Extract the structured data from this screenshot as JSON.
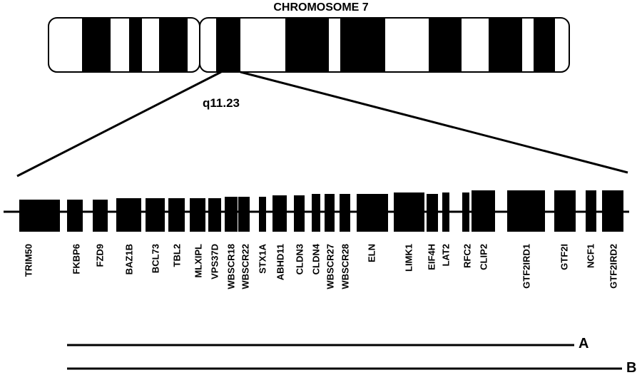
{
  "title": "CHROMOSOME 7",
  "band": "q11.23",
  "genes": [
    "TRIM50",
    "FKBP6",
    "FZD9",
    "BAZ1B",
    "BCL73",
    "TBL2",
    "MLXIPL",
    "VPS37D",
    "WBSCR18",
    "WBSCR22",
    "STX1A",
    "ABHD11",
    "CLDN3",
    "CLDN4",
    "WBSCR27",
    "WBSCR28",
    "ELN",
    "LIMK1",
    "EIF4H",
    "LAT2",
    "RFC2",
    "CLIP2",
    "GTF2IRD1",
    "GTF2I",
    "NCF1",
    "GTF2IRD2"
  ],
  "deletions": [
    {
      "label": "A"
    },
    {
      "label": "B"
    }
  ],
  "colors": {
    "ink": "#000000",
    "background": "#ffffff"
  }
}
